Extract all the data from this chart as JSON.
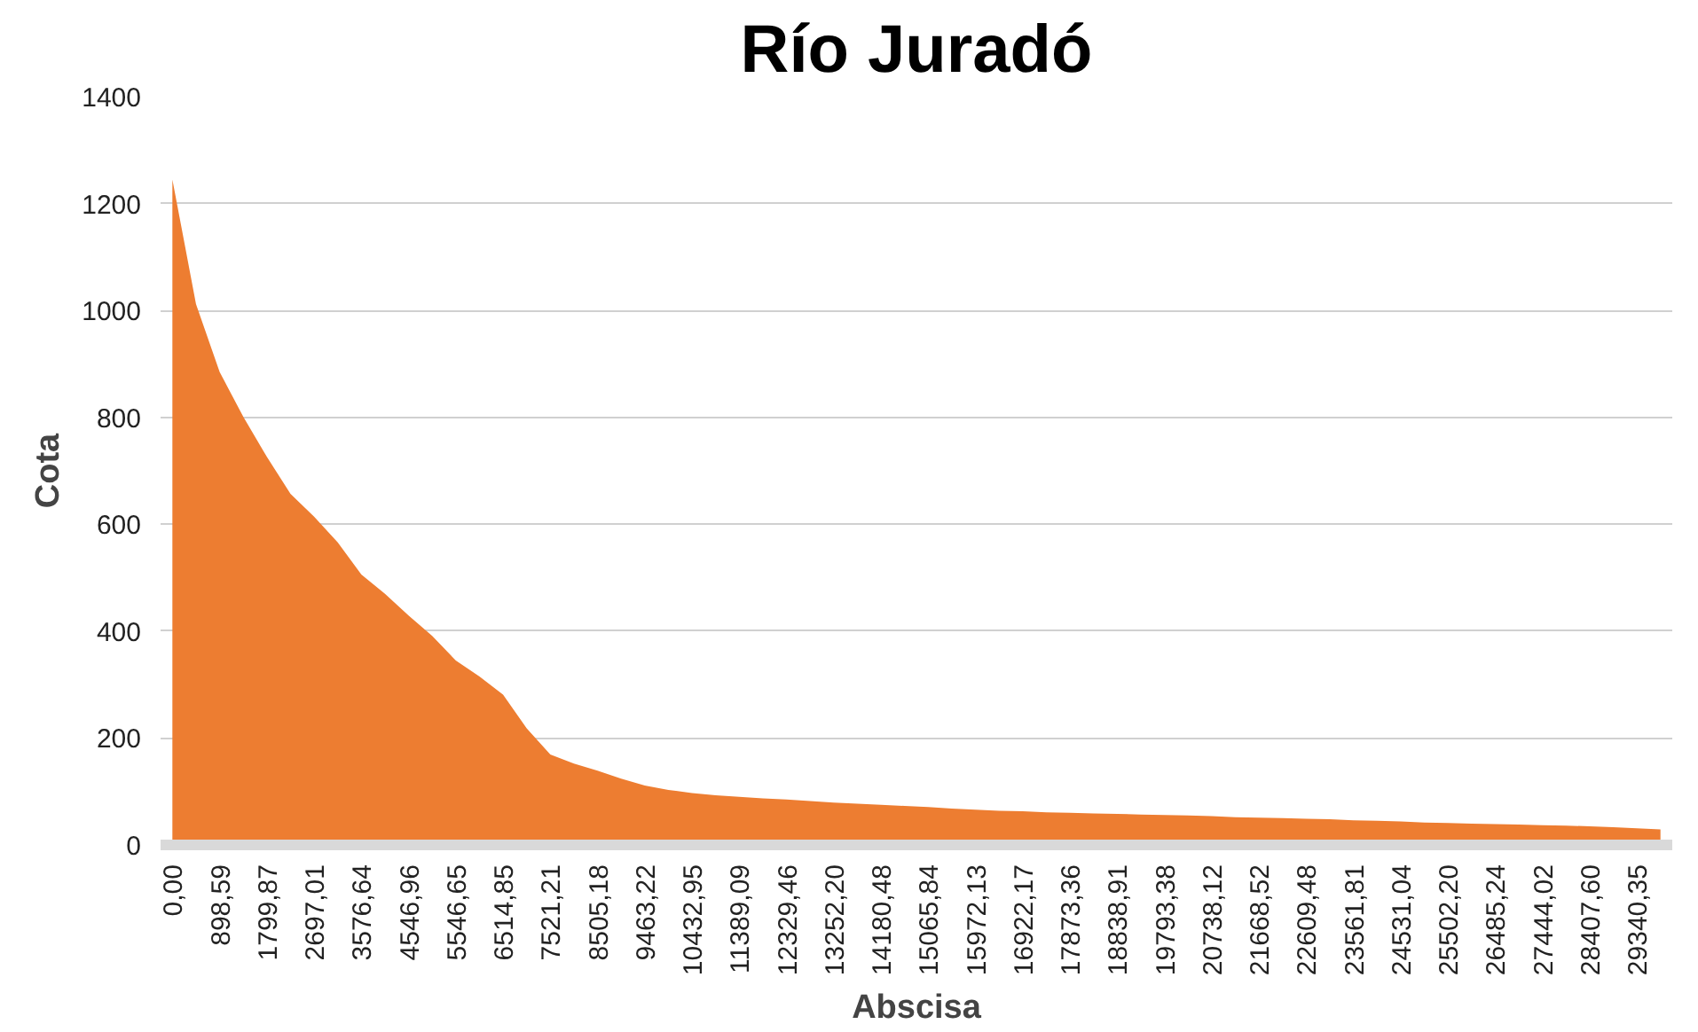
{
  "chart_data": {
    "type": "area",
    "title": "Río Juradó",
    "xlabel": "Abscisa",
    "ylabel": "Cota",
    "categories": [
      "0,00",
      null,
      "898,59",
      null,
      "1799,87",
      null,
      "2697,01",
      null,
      "3576,64",
      null,
      "4546,96",
      null,
      "5546,65",
      null,
      "6514,85",
      null,
      "7521,21",
      null,
      "8505,18",
      null,
      "9463,22",
      null,
      "10432,95",
      null,
      "11389,09",
      null,
      "12329,46",
      null,
      "13252,20",
      null,
      "14180,48",
      null,
      "15065,84",
      null,
      "15972,13",
      null,
      "16922,17",
      null,
      "17873,36",
      null,
      "18838,91",
      null,
      "19793,38",
      null,
      "20738,12",
      null,
      "21668,52",
      null,
      "22609,48",
      null,
      "23561,81",
      null,
      "24531,04",
      null,
      "25502,20",
      null,
      "26485,24",
      null,
      "27444,02",
      null,
      "28407,60",
      null,
      "29340,35",
      null
    ],
    "series": [
      {
        "color": "#ed7d31",
        "values": [
          1245,
          1012,
          885,
          801,
          726,
          657,
          614,
          566,
          506,
          470,
          429,
          391,
          345,
          315,
          281,
          218,
          169,
          152,
          139,
          124,
          111,
          103,
          97,
          93,
          90,
          87,
          85,
          82,
          79,
          77,
          75,
          73,
          71,
          68,
          66,
          64,
          63,
          61,
          60,
          59,
          58,
          57,
          56,
          55,
          54,
          52,
          51,
          50,
          49,
          48,
          46,
          45,
          44,
          42,
          41,
          40,
          39,
          38,
          37,
          36,
          35,
          33,
          31,
          29
        ]
      }
    ],
    "ylim": [
      0,
      1400
    ],
    "yticks": [
      0,
      200,
      400,
      600,
      800,
      1000,
      1200,
      1400
    ],
    "grid": "y"
  }
}
